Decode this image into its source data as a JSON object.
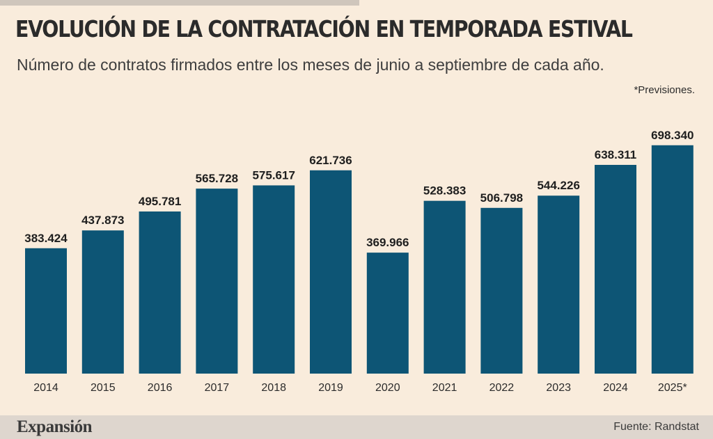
{
  "header": {
    "title": "EVOLUCIÓN DE LA CONTRATACIÓN EN TEMPORADA ESTIVAL",
    "subtitle": "Número de contratos firmados entre los meses de junio a septiembre de cada año.",
    "note": "*Previsiones."
  },
  "footer": {
    "brand": "Expansión",
    "source": "Fuente: Randstat"
  },
  "colors": {
    "bar": "#0d5575",
    "background": "#f9ecdc",
    "label": "#1e1e1e"
  },
  "chart_data": {
    "type": "bar",
    "categories": [
      "2014",
      "2015",
      "2016",
      "2017",
      "2018",
      "2019",
      "2020",
      "2021",
      "2022",
      "2023",
      "2024",
      "2025*"
    ],
    "values": [
      383424,
      437873,
      495781,
      565728,
      575617,
      621736,
      369966,
      528383,
      506798,
      544226,
      638311,
      698340
    ],
    "value_labels": [
      "383.424",
      "437.873",
      "495.781",
      "565.728",
      "575.617",
      "621.736",
      "369.966",
      "528.383",
      "506.798",
      "544.226",
      "638.311",
      "698.340"
    ],
    "ylim": [
      0,
      800000
    ],
    "grid": false,
    "legend": "none"
  }
}
